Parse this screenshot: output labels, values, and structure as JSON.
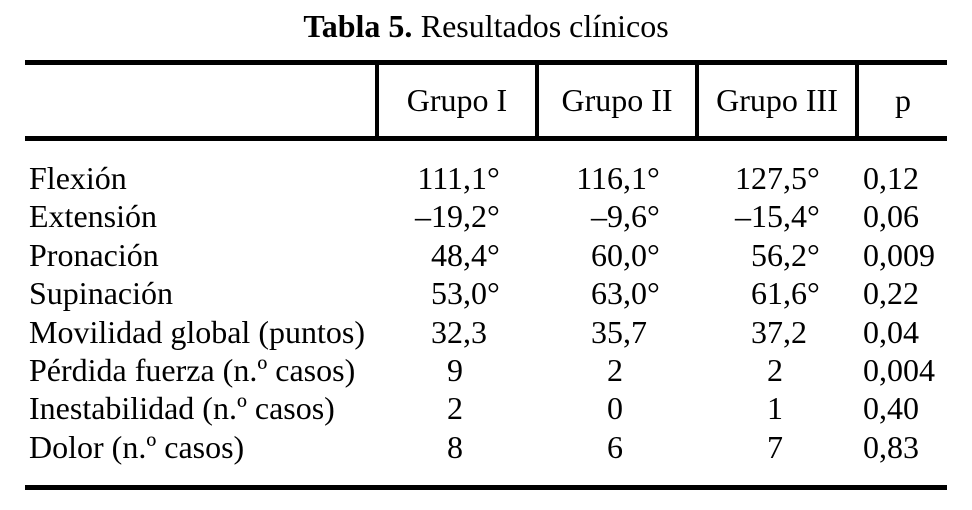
{
  "title": {
    "label": "Tabla 5.",
    "text": "Resultados clínicos"
  },
  "table": {
    "columns": [
      "",
      "Grupo I",
      "Grupo II",
      "Grupo III",
      "p"
    ],
    "rows": [
      {
        "label": "Flexión",
        "grupo1": "111,1°",
        "grupo2": "116,1°",
        "grupo3": "127,5°",
        "p": "0,12"
      },
      {
        "label": "Extensión",
        "grupo1": "–19,2°",
        "grupo2": "–9,6°",
        "grupo3": "–15,4°",
        "p": "0,06"
      },
      {
        "label": "Pronación",
        "grupo1": "48,4°",
        "grupo2": "60,0°",
        "grupo3": "56,2°",
        "p": "0,009"
      },
      {
        "label": "Supinación",
        "grupo1": "53,0°",
        "grupo2": "63,0°",
        "grupo3": "61,6°",
        "p": "0,22"
      },
      {
        "label": "Movilidad global (puntos)",
        "grupo1": "32,3",
        "grupo2": "35,7",
        "grupo3": "37,2",
        "p": "0,04"
      },
      {
        "label": "Pérdida fuerza (n.º casos)",
        "grupo1": "9",
        "grupo2": "2",
        "grupo3": "2",
        "p": "0,004"
      },
      {
        "label": "Inestabilidad (n.º casos)",
        "grupo1": "2",
        "grupo2": "0",
        "grupo3": "1",
        "p": "0,40"
      },
      {
        "label": "Dolor (n.º casos)",
        "grupo1": "8",
        "grupo2": "6",
        "grupo3": "7",
        "p": "0,83"
      }
    ]
  }
}
